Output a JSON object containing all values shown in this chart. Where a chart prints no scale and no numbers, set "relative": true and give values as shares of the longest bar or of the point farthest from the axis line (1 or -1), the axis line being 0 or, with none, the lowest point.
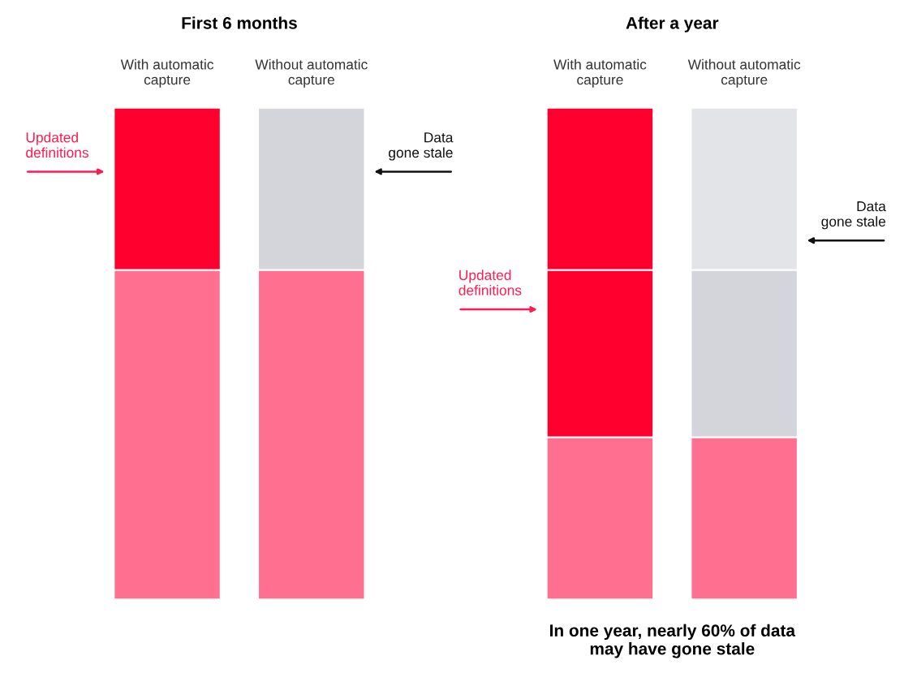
{
  "chart_data": [
    {
      "type": "bar",
      "title": "First 6 months",
      "relative": true,
      "stacked": true,
      "categories": [
        "With automatic\ncapture",
        "Without automatic\ncapture"
      ],
      "series": [
        {
          "colors": [
            "#ff6f8f",
            "#ff6f8f"
          ],
          "values": [
            0.67,
            0.67
          ]
        },
        {
          "colors": [
            "#ff002e",
            "#d4d5db"
          ],
          "values": [
            0.33,
            0.33
          ]
        }
      ],
      "annotations": [
        "Updated\ndefinitions",
        "Data\ngone stale"
      ]
    },
    {
      "type": "bar",
      "title": "After a year",
      "relative": true,
      "stacked": true,
      "categories": [
        "With automatic\ncapture",
        "Without automatic\ncapture"
      ],
      "series": [
        {
          "colors": [
            "#ff6f8f",
            "#ff6f8f"
          ],
          "values": [
            0.33,
            0.33
          ]
        },
        {
          "colors": [
            "#ff002e",
            "#d4d5db"
          ],
          "values": [
            0.34,
            0.34
          ]
        },
        {
          "colors": [
            "#ff002e",
            "#e3e4e8"
          ],
          "values": [
            0.33,
            0.33
          ]
        }
      ],
      "annotations": [
        "Updated\ndefinitions",
        "Data\ngone stale",
        "In one year, nearly 60% of data\nmay have gone stale"
      ]
    }
  ]
}
